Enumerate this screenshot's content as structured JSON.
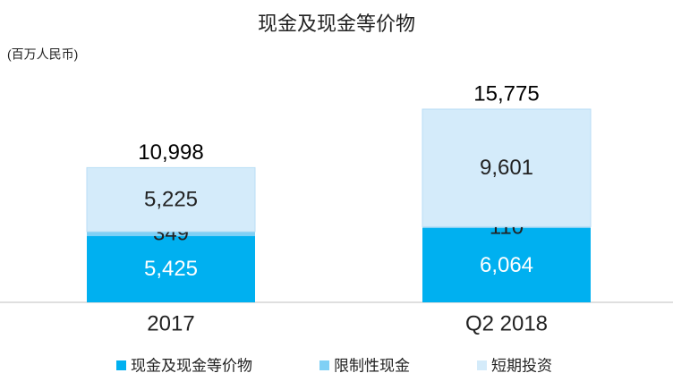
{
  "chart_data": {
    "type": "stacked_bar",
    "title": "现金及现金等价物",
    "unit_label": "(百万人民币)",
    "categories": [
      "2017",
      "Q2 2018"
    ],
    "series": [
      {
        "name": "现金及现金等价物",
        "color": "#00b0f0",
        "label_color": "#ffffff",
        "values": [
          5425,
          6064
        ],
        "value_labels": [
          "5,425",
          "6,064"
        ]
      },
      {
        "name": "限制性现金",
        "color": "#7fd0f5",
        "label_color": "#222222",
        "values": [
          349,
          110
        ],
        "value_labels": [
          "349",
          "110"
        ]
      },
      {
        "name": "短期投资",
        "color": "#d4ebfa",
        "label_color": "#222222",
        "values": [
          5225,
          9601
        ],
        "value_labels": [
          "5,225",
          "9,601"
        ]
      }
    ],
    "totals": [
      10998,
      15775
    ],
    "total_labels": [
      "10,998",
      "15,775"
    ]
  }
}
